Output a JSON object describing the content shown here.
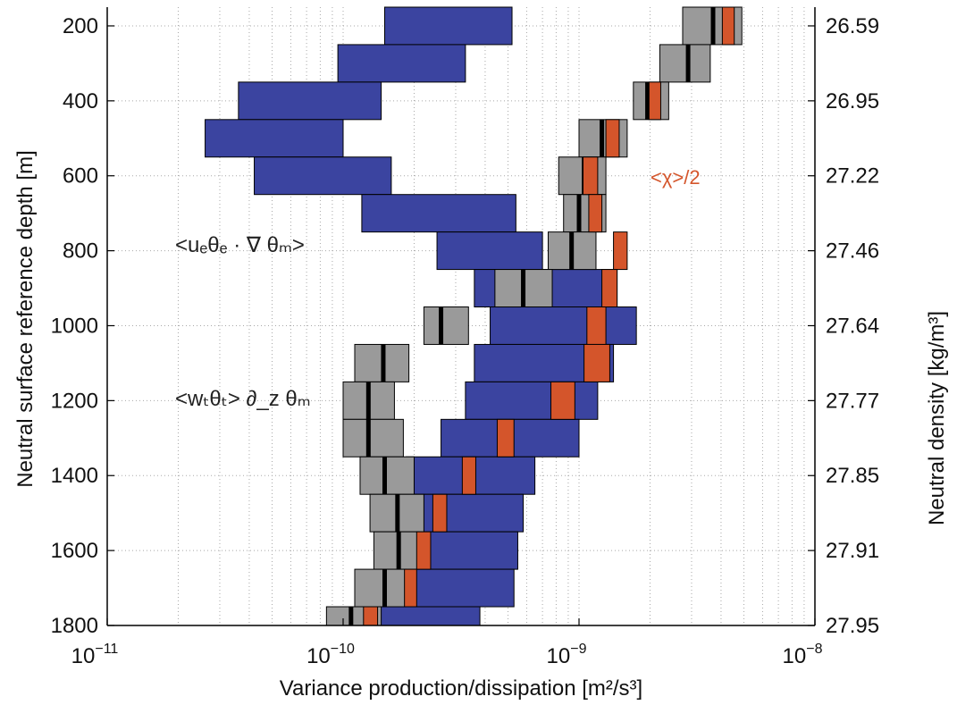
{
  "chart_data": {
    "type": "bar",
    "xscale": "log",
    "xlim": [
      1e-11,
      1e-08
    ],
    "ylim": [
      1800,
      150
    ],
    "grid": "on",
    "xlabel": "Variance production/dissipation [m²/s³]",
    "ylabel": "Neutral surface reference depth [m]",
    "ylabel_right": "Neutral density [kg/m³]",
    "x_ticks": [
      {
        "base": "10",
        "exp": "−11",
        "value": 1e-11
      },
      {
        "base": "10",
        "exp": "−10",
        "value": 1e-10
      },
      {
        "base": "10",
        "exp": "−9",
        "value": 1e-09
      },
      {
        "base": "10",
        "exp": "−8",
        "value": 1e-08
      }
    ],
    "y_ticks": [
      200,
      400,
      600,
      800,
      1000,
      1200,
      1400,
      1600,
      1800
    ],
    "y_ticks_right": [
      {
        "depth": 200,
        "label": "26.59"
      },
      {
        "depth": 400,
        "label": "26.95"
      },
      {
        "depth": 600,
        "label": "27.22"
      },
      {
        "depth": 800,
        "label": "27.46"
      },
      {
        "depth": 1000,
        "label": "27.64"
      },
      {
        "depth": 1200,
        "label": "27.77"
      },
      {
        "depth": 1400,
        "label": "27.85"
      },
      {
        "depth": 1600,
        "label": "27.91"
      },
      {
        "depth": 1800,
        "label": "27.95"
      }
    ],
    "annotations": {
      "lateral": "<uₑθₑ · ∇ θₘ>",
      "vertical": "<wₜθₜ> ∂_z θₘ",
      "dissipation": "<χ>/2"
    },
    "colors": {
      "lateral": "#3b44a0",
      "vertical": "#9a9a9a",
      "dissipation": "#d4552b",
      "center": "#000000"
    },
    "series": [
      {
        "name": "<uₑθₑ · ∇ θₘ>",
        "bins": [
          {
            "top": 150,
            "bottom": 250,
            "lo": 1.5e-10,
            "hi": 5.2e-10
          },
          {
            "top": 250,
            "bottom": 350,
            "lo": 9.5e-11,
            "hi": 3.3e-10
          },
          {
            "top": 350,
            "bottom": 450,
            "lo": 3.6e-11,
            "hi": 1.45e-10
          },
          {
            "top": 450,
            "bottom": 550,
            "lo": 2.6e-11,
            "hi": 1e-10
          },
          {
            "top": 550,
            "bottom": 650,
            "lo": 4.2e-11,
            "hi": 1.6e-10
          },
          {
            "top": 650,
            "bottom": 750,
            "lo": 1.2e-10,
            "hi": 5.4e-10
          },
          {
            "top": 750,
            "bottom": 850,
            "lo": 2.5e-10,
            "hi": 7e-10
          },
          {
            "top": 850,
            "bottom": 950,
            "lo": 3.6e-10,
            "hi": 1.45e-09
          },
          {
            "top": 950,
            "bottom": 1050,
            "lo": 4.2e-10,
            "hi": 1.75e-09
          },
          {
            "top": 1050,
            "bottom": 1150,
            "lo": 3.6e-10,
            "hi": 1.4e-09
          },
          {
            "top": 1150,
            "bottom": 1250,
            "lo": 3.3e-10,
            "hi": 1.2e-09
          },
          {
            "top": 1250,
            "bottom": 1350,
            "lo": 2.6e-10,
            "hi": 1e-09
          },
          {
            "top": 1350,
            "bottom": 1450,
            "lo": 1.85e-10,
            "hi": 6.5e-10
          },
          {
            "top": 1450,
            "bottom": 1550,
            "lo": 1.95e-10,
            "hi": 5.8e-10
          },
          {
            "top": 1550,
            "bottom": 1650,
            "lo": 1.75e-10,
            "hi": 5.5e-10
          },
          {
            "top": 1650,
            "bottom": 1750,
            "lo": 1.75e-10,
            "hi": 5.3e-10
          },
          {
            "top": 1750,
            "bottom": 1800,
            "lo": 1.35e-10,
            "hi": 3.8e-10
          }
        ]
      },
      {
        "name": "<wₜθₜ> ∂_z θₘ",
        "bins": [
          {
            "top": 150,
            "bottom": 250,
            "lo": 2.75e-09,
            "hi": 4.9e-09,
            "center": 3.7e-09
          },
          {
            "top": 250,
            "bottom": 350,
            "lo": 2.2e-09,
            "hi": 3.6e-09,
            "center": 2.9e-09
          },
          {
            "top": 350,
            "bottom": 450,
            "lo": 1.7e-09,
            "hi": 2.4e-09,
            "center": 1.95e-09
          },
          {
            "top": 450,
            "bottom": 550,
            "lo": 1e-09,
            "hi": 1.6e-09,
            "center": 1.25e-09
          },
          {
            "top": 550,
            "bottom": 650,
            "lo": 8.2e-10,
            "hi": 1.3e-09,
            "center": 1.05e-09
          },
          {
            "top": 650,
            "bottom": 750,
            "lo": 8.6e-10,
            "hi": 1.3e-09,
            "center": 1e-09
          },
          {
            "top": 750,
            "bottom": 850,
            "lo": 7.4e-10,
            "hi": 1.18e-09,
            "center": 9.3e-10
          },
          {
            "top": 850,
            "bottom": 950,
            "lo": 4.4e-10,
            "hi": 7.7e-10,
            "center": 5.8e-10
          },
          {
            "top": 950,
            "bottom": 1050,
            "lo": 2.2e-10,
            "hi": 3.4e-10,
            "center": 2.6e-10
          },
          {
            "top": 1050,
            "bottom": 1150,
            "lo": 1.12e-10,
            "hi": 1.9e-10,
            "center": 1.48e-10
          },
          {
            "top": 1150,
            "bottom": 1250,
            "lo": 1e-10,
            "hi": 1.65e-10,
            "center": 1.28e-10
          },
          {
            "top": 1250,
            "bottom": 1350,
            "lo": 1e-10,
            "hi": 1.8e-10,
            "center": 1.28e-10
          },
          {
            "top": 1350,
            "bottom": 1450,
            "lo": 1.18e-10,
            "hi": 2e-10,
            "center": 1.5e-10
          },
          {
            "top": 1450,
            "bottom": 1550,
            "lo": 1.3e-10,
            "hi": 2.2e-10,
            "center": 1.7e-10
          },
          {
            "top": 1550,
            "bottom": 1650,
            "lo": 1.35e-10,
            "hi": 2.1e-10,
            "center": 1.72e-10
          },
          {
            "top": 1650,
            "bottom": 1750,
            "lo": 1.12e-10,
            "hi": 1.85e-10,
            "center": 1.5e-10
          },
          {
            "top": 1750,
            "bottom": 1800,
            "lo": 8.5e-11,
            "hi": 1.45e-10,
            "center": 1.08e-10
          }
        ]
      },
      {
        "name": "<χ>/2",
        "bins": [
          {
            "top": 150,
            "bottom": 250,
            "lo": 4.05e-09,
            "hi": 4.55e-09
          },
          {
            "top": 250,
            "bottom": 350,
            "lo": 0,
            "hi": 0
          },
          {
            "top": 350,
            "bottom": 450,
            "lo": 1.98e-09,
            "hi": 2.22e-09
          },
          {
            "top": 450,
            "bottom": 550,
            "lo": 1.3e-09,
            "hi": 1.48e-09
          },
          {
            "top": 550,
            "bottom": 650,
            "lo": 1.04e-09,
            "hi": 1.2e-09
          },
          {
            "top": 650,
            "bottom": 750,
            "lo": 1.1e-09,
            "hi": 1.25e-09
          },
          {
            "top": 750,
            "bottom": 850,
            "lo": 1.4e-09,
            "hi": 1.6e-09
          },
          {
            "top": 850,
            "bottom": 950,
            "lo": 1.25e-09,
            "hi": 1.45e-09
          },
          {
            "top": 950,
            "bottom": 1050,
            "lo": 1.08e-09,
            "hi": 1.3e-09
          },
          {
            "top": 1050,
            "bottom": 1150,
            "lo": 1.05e-09,
            "hi": 1.35e-09
          },
          {
            "top": 1150,
            "bottom": 1250,
            "lo": 7.6e-10,
            "hi": 9.6e-10
          },
          {
            "top": 1250,
            "bottom": 1350,
            "lo": 4.5e-10,
            "hi": 5.3e-10
          },
          {
            "top": 1350,
            "bottom": 1450,
            "lo": 3.2e-10,
            "hi": 3.65e-10
          },
          {
            "top": 1450,
            "bottom": 1550,
            "lo": 2.4e-10,
            "hi": 2.75e-10
          },
          {
            "top": 1550,
            "bottom": 1650,
            "lo": 2.05e-10,
            "hi": 2.35e-10
          },
          {
            "top": 1650,
            "bottom": 1750,
            "lo": 1.82e-10,
            "hi": 2.05e-10
          },
          {
            "top": 1750,
            "bottom": 1800,
            "lo": 1.22e-10,
            "hi": 1.4e-10
          }
        ]
      }
    ]
  }
}
